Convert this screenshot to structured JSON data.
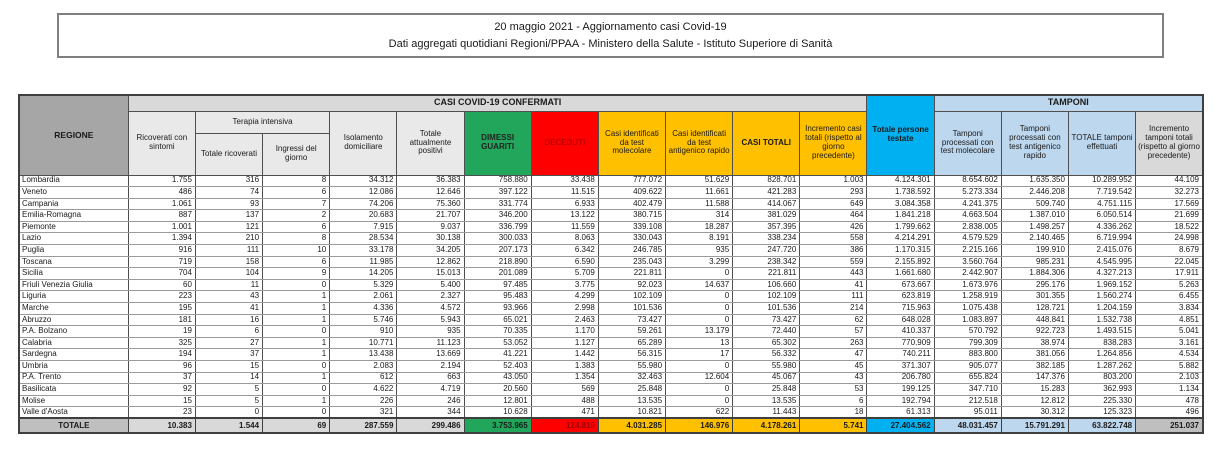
{
  "title": {
    "line1": "20 maggio 2021 - Aggiornamento casi Covid-19",
    "line2": "Dati aggregati quotidiani Regioni/PPAA - Ministero della Salute - Istituto Superiore di Sanità"
  },
  "colors": {
    "green": "#21a65b",
    "red": "#ff0000",
    "yellow": "#ffc000",
    "cyan": "#00b0f0",
    "light_blue": "#bdd7ee",
    "banner_gray": "#d9d9d9",
    "region_gray": "#a6a6a6",
    "total_gray": "#d9d9d9",
    "total_dark_gray": "#bfbfbf",
    "deceduti_text": "#c00000"
  },
  "table": {
    "region_header": "REGIONE",
    "confirmed_banner": "CASI COVID-19 CONFERMATI",
    "tamponi_banner": "TAMPONI",
    "terapia_header": "Terapia intensiva",
    "columns": [
      "Ricoverati con sintomi",
      "Totale ricoverati",
      "Ingressi del giorno",
      "Isolamento domiciliare",
      "Totale attualmente positivi",
      "DIMESSI GUARITI",
      "DECEDUTI",
      "Casi identificati da test molecolare",
      "Casi identificati da test antigenico rapido",
      "CASI TOTALI",
      "Incremento casi totali (rispetto al giorno precedente)",
      "Totale persone testate",
      "Tamponi processati con test molecolare",
      "Tamponi processati con test antigenico rapido",
      "TOTALE tamponi effettuati",
      "Incremento tamponi totali (rispetto al giorno precedente)"
    ],
    "rows": [
      {
        "region": "Lombardia",
        "values": [
          "1.755",
          "316",
          "8",
          "34.312",
          "36.383",
          "758.880",
          "33.438",
          "777.072",
          "51.629",
          "828.701",
          "1.003",
          "4.124.301",
          "8.654.602",
          "1.635.350",
          "10.289.952",
          "44.109"
        ]
      },
      {
        "region": "Veneto",
        "values": [
          "486",
          "74",
          "6",
          "12.086",
          "12.646",
          "397.122",
          "11.515",
          "409.622",
          "11.661",
          "421.283",
          "293",
          "1.738.592",
          "5.273.334",
          "2.446.208",
          "7.719.542",
          "32.273"
        ]
      },
      {
        "region": "Campania",
        "values": [
          "1.061",
          "93",
          "7",
          "74.206",
          "75.360",
          "331.774",
          "6.933",
          "402.479",
          "11.588",
          "414.067",
          "649",
          "3.084.358",
          "4.241.375",
          "509.740",
          "4.751.115",
          "17.569"
        ]
      },
      {
        "region": "Emilia-Romagna",
        "values": [
          "887",
          "137",
          "2",
          "20.683",
          "21.707",
          "346.200",
          "13.122",
          "380.715",
          "314",
          "381.029",
          "464",
          "1.841.218",
          "4.663.504",
          "1.387.010",
          "6.050.514",
          "21.699"
        ]
      },
      {
        "region": "Piemonte",
        "values": [
          "1.001",
          "121",
          "6",
          "7.915",
          "9.037",
          "336.799",
          "11.559",
          "339.108",
          "18.287",
          "357.395",
          "426",
          "1.799.662",
          "2.838.005",
          "1.498.257",
          "4.336.262",
          "18.522"
        ]
      },
      {
        "region": "Lazio",
        "values": [
          "1.394",
          "210",
          "8",
          "28.534",
          "30.138",
          "300.033",
          "8.063",
          "330.043",
          "8.191",
          "338.234",
          "558",
          "4.214.291",
          "4.579.529",
          "2.140.465",
          "6.719.994",
          "24.998"
        ]
      },
      {
        "region": "Puglia",
        "values": [
          "916",
          "111",
          "10",
          "33.178",
          "34.205",
          "207.173",
          "6.342",
          "246.785",
          "935",
          "247.720",
          "386",
          "1.170.315",
          "2.215.166",
          "199.910",
          "2.415.076",
          "8.679"
        ]
      },
      {
        "region": "Toscana",
        "values": [
          "719",
          "158",
          "6",
          "11.985",
          "12.862",
          "218.890",
          "6.590",
          "235.043",
          "3.299",
          "238.342",
          "559",
          "2.155.892",
          "3.560.764",
          "985.231",
          "4.545.995",
          "22.045"
        ]
      },
      {
        "region": "Sicilia",
        "values": [
          "704",
          "104",
          "9",
          "14.205",
          "15.013",
          "201.089",
          "5.709",
          "221.811",
          "0",
          "221.811",
          "443",
          "1.661.680",
          "2.442.907",
          "1.884.306",
          "4.327.213",
          "17.911"
        ]
      },
      {
        "region": "Friuli Venezia Giulia",
        "values": [
          "60",
          "11",
          "0",
          "5.329",
          "5.400",
          "97.485",
          "3.775",
          "92.023",
          "14.637",
          "106.660",
          "41",
          "673.667",
          "1.673.976",
          "295.176",
          "1.969.152",
          "5.263"
        ]
      },
      {
        "region": "Liguria",
        "values": [
          "223",
          "43",
          "1",
          "2.061",
          "2.327",
          "95.483",
          "4.299",
          "102.109",
          "0",
          "102.109",
          "111",
          "623.819",
          "1.258.919",
          "301.355",
          "1.560.274",
          "6.455"
        ]
      },
      {
        "region": "Marche",
        "values": [
          "195",
          "41",
          "1",
          "4.336",
          "4.572",
          "93.966",
          "2.998",
          "101.536",
          "0",
          "101.536",
          "214",
          "715.963",
          "1.075.438",
          "128.721",
          "1.204.159",
          "3.834"
        ]
      },
      {
        "region": "Abruzzo",
        "values": [
          "181",
          "16",
          "1",
          "5.746",
          "5.943",
          "65.021",
          "2.463",
          "73.427",
          "0",
          "73.427",
          "62",
          "648.028",
          "1.083.897",
          "448.841",
          "1.532.738",
          "4.851"
        ]
      },
      {
        "region": "P.A. Bolzano",
        "values": [
          "19",
          "6",
          "0",
          "910",
          "935",
          "70.335",
          "1.170",
          "59.261",
          "13.179",
          "72.440",
          "57",
          "410.337",
          "570.792",
          "922.723",
          "1.493.515",
          "5.041"
        ]
      },
      {
        "region": "Calabria",
        "values": [
          "325",
          "27",
          "1",
          "10.771",
          "11.123",
          "53.052",
          "1.127",
          "65.289",
          "13",
          "65.302",
          "263",
          "770.909",
          "799.309",
          "38.974",
          "838.283",
          "3.161"
        ]
      },
      {
        "region": "Sardegna",
        "values": [
          "194",
          "37",
          "1",
          "13.438",
          "13.669",
          "41.221",
          "1.442",
          "56.315",
          "17",
          "56.332",
          "47",
          "740.211",
          "883.800",
          "381.056",
          "1.264.856",
          "4.534"
        ]
      },
      {
        "region": "Umbria",
        "values": [
          "96",
          "15",
          "0",
          "2.083",
          "2.194",
          "52.403",
          "1.383",
          "55.980",
          "0",
          "55.980",
          "45",
          "371.307",
          "905.077",
          "382.185",
          "1.287.262",
          "5.882"
        ]
      },
      {
        "region": "P.A. Trento",
        "values": [
          "37",
          "14",
          "1",
          "612",
          "663",
          "43.050",
          "1.354",
          "32.463",
          "12.604",
          "45.067",
          "43",
          "206.780",
          "655.824",
          "147.376",
          "803.200",
          "2.103"
        ]
      },
      {
        "region": "Basilicata",
        "values": [
          "92",
          "5",
          "0",
          "4.622",
          "4.719",
          "20.560",
          "569",
          "25.848",
          "0",
          "25.848",
          "53",
          "199.125",
          "347.710",
          "15.283",
          "362.993",
          "1.134"
        ]
      },
      {
        "region": "Molise",
        "values": [
          "15",
          "5",
          "1",
          "226",
          "246",
          "12.801",
          "488",
          "13.535",
          "0",
          "13.535",
          "6",
          "192.794",
          "212.518",
          "12.812",
          "225.330",
          "478"
        ]
      },
      {
        "region": "Valle d'Aosta",
        "values": [
          "23",
          "0",
          "0",
          "321",
          "344",
          "10.628",
          "471",
          "10.821",
          "622",
          "11.443",
          "18",
          "61.313",
          "95.011",
          "30.312",
          "125.323",
          "496"
        ]
      }
    ],
    "total": {
      "label": "TOTALE",
      "values": [
        "10.383",
        "1.544",
        "69",
        "287.559",
        "299.486",
        "3.753.965",
        "124.810",
        "4.031.285",
        "146.976",
        "4.178.261",
        "5.741",
        "27.404.562",
        "48.031.457",
        "15.791.291",
        "63.822.748",
        "251.037"
      ]
    }
  }
}
